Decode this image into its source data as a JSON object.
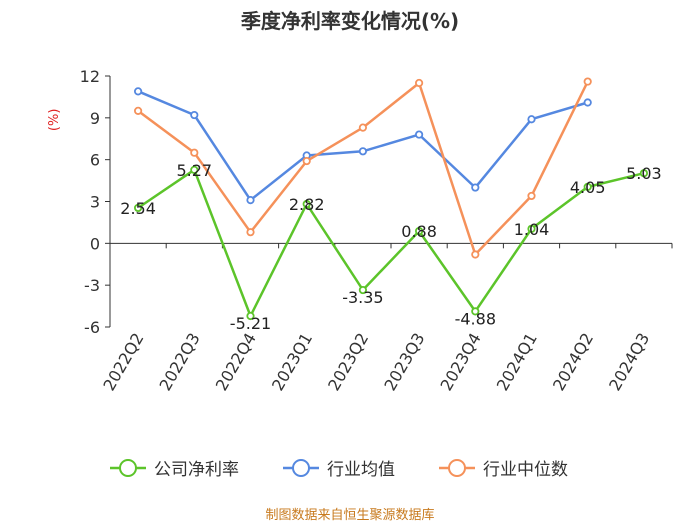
{
  "chart_data": {
    "type": "line",
    "title": "季度净利率变化情况(%)",
    "ylabel": "(%)",
    "categories": [
      "2022Q2",
      "2022Q3",
      "2022Q4",
      "2023Q1",
      "2023Q2",
      "2023Q3",
      "2023Q4",
      "2024Q1",
      "2024Q2",
      "2024Q3"
    ],
    "ylim": [
      -6,
      12
    ],
    "yticks": [
      -6,
      -3,
      0,
      3,
      6,
      9,
      12
    ],
    "ytick_labels": [
      "-6",
      "-3",
      "0",
      "3",
      "6",
      "9",
      "12"
    ],
    "series": [
      {
        "name": "公司净利率",
        "color": "#5cc42a",
        "show_labels": true,
        "values": [
          2.54,
          5.27,
          -5.21,
          2.82,
          -3.35,
          0.88,
          -4.88,
          1.04,
          4.05,
          5.03
        ],
        "labels": [
          "2.54",
          "5.27",
          "-5.21",
          "2.82",
          "-3.35",
          "0.88",
          "-4.88",
          "1.04",
          "4.05",
          "5.03"
        ]
      },
      {
        "name": "行业均值",
        "color": "#5588e0",
        "show_labels": false,
        "values": [
          10.9,
          9.2,
          3.1,
          6.3,
          6.6,
          7.8,
          4.0,
          8.9,
          10.1,
          null
        ]
      },
      {
        "name": "行业中位数",
        "color": "#f5915a",
        "show_labels": false,
        "values": [
          9.5,
          6.5,
          0.8,
          5.9,
          8.3,
          11.5,
          -0.8,
          3.4,
          11.6,
          null
        ]
      }
    ],
    "grid": false,
    "legend_position": "bottom"
  },
  "footer": {
    "source": "制图数据来自恒生聚源数据库"
  }
}
